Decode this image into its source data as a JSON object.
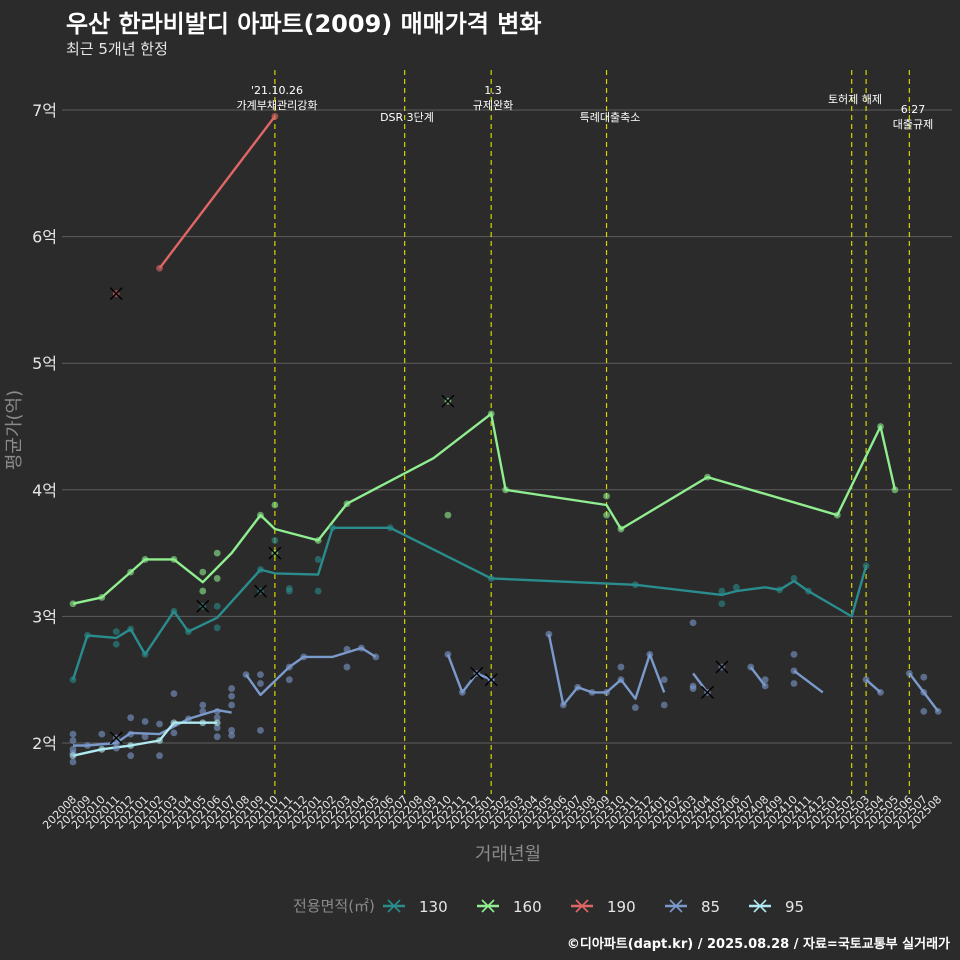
{
  "title": "우산 한라비발디 아파트(2009) 매매가격 변화",
  "subtitle": "최근 5개년 한정",
  "caption": "©디아파트(dapt.kr) / 2025.08.28 / 자료=국토교통부 실거래가",
  "chart_data": {
    "type": "line",
    "xlabel": "거래년월",
    "ylabel": "평균가(억)",
    "ylim": [
      1.6,
      7.5
    ],
    "yticks": [
      2,
      3,
      4,
      5,
      6,
      7
    ],
    "ytick_suffix": "억",
    "grid": "horizontal",
    "legend_title": "전용면적(㎡)",
    "legend_position": "bottom",
    "colors": {
      "background": "#2b2b2b",
      "grid": "#5e5e5e",
      "event_line": "#d4d400",
      "text": "#e6e6e6",
      "axis_title": "#8a8a8a"
    },
    "months": [
      "202008",
      "202009",
      "202010",
      "202011",
      "202012",
      "202101",
      "202102",
      "202103",
      "202104",
      "202105",
      "202106",
      "202107",
      "202108",
      "202109",
      "202110",
      "202111",
      "202112",
      "202201",
      "202202",
      "202203",
      "202204",
      "202205",
      "202206",
      "202207",
      "202208",
      "202209",
      "202210",
      "202211",
      "202212",
      "202301",
      "202302",
      "202303",
      "202304",
      "202305",
      "202306",
      "202307",
      "202308",
      "202309",
      "202310",
      "202311",
      "202312",
      "202401",
      "202402",
      "202403",
      "202404",
      "202405",
      "202406",
      "202407",
      "202408",
      "202409",
      "202410",
      "202411",
      "202412",
      "202501",
      "202502",
      "202503",
      "202504",
      "202505",
      "202506",
      "202507",
      "202508"
    ],
    "x_start": "202008",
    "events": [
      {
        "month": "202110",
        "label": "'21.10.26\n가계부채관리강화"
      },
      {
        "month": "202207",
        "label": "DSR 3단계"
      },
      {
        "month": "202301",
        "label": "1.3\n규제완화"
      },
      {
        "month": "202309",
        "label": "특례대출축소"
      },
      {
        "month": "202502",
        "label": "토허제 해제"
      },
      {
        "month": "202503",
        "label": ""
      },
      {
        "month": "202506",
        "label": "6.27\n대출규제"
      }
    ],
    "series": [
      {
        "name": "130",
        "color": "#2a8c8c",
        "line": [
          [
            "202008",
            2.5
          ],
          [
            "202009",
            2.85
          ],
          [
            "202011",
            2.83
          ],
          [
            "202012",
            2.9
          ],
          [
            "202101",
            2.7
          ],
          [
            "202103",
            3.04
          ],
          [
            "202104",
            2.88
          ],
          [
            "202106",
            2.99
          ],
          [
            "202109",
            3.37
          ],
          [
            "202110",
            3.34
          ],
          [
            "202201",
            3.33
          ],
          [
            "202202",
            3.7
          ],
          [
            "202206",
            3.7
          ],
          [
            "202301",
            3.3
          ],
          [
            "202311",
            3.25
          ],
          [
            "202405",
            3.17
          ],
          [
            "202406",
            3.2
          ],
          [
            "202408",
            3.23
          ],
          [
            "202409",
            3.21
          ],
          [
            "202410",
            3.28
          ],
          [
            "202411",
            3.2
          ],
          [
            "202502",
            3.0
          ],
          [
            "202503",
            3.4
          ]
        ],
        "points": [
          [
            "202008",
            2.5
          ],
          [
            "202009",
            2.85
          ],
          [
            "202011",
            2.88
          ],
          [
            "202011",
            2.78
          ],
          [
            "202012",
            2.9
          ],
          [
            "202101",
            2.7
          ],
          [
            "202103",
            3.04
          ],
          [
            "202104",
            2.88
          ],
          [
            "202106",
            3.08
          ],
          [
            "202106",
            2.91
          ],
          [
            "202109",
            3.37
          ],
          [
            "202110",
            3.6
          ],
          [
            "202111",
            3.2
          ],
          [
            "202111",
            3.22
          ],
          [
            "202201",
            3.2
          ],
          [
            "202201",
            3.45
          ],
          [
            "202202",
            3.7
          ],
          [
            "202206",
            3.7
          ],
          [
            "202301",
            3.3
          ],
          [
            "202311",
            3.25
          ],
          [
            "202405",
            3.1
          ],
          [
            "202405",
            3.2
          ],
          [
            "202406",
            3.23
          ],
          [
            "202409",
            3.21
          ],
          [
            "202410",
            3.3
          ],
          [
            "202411",
            3.2
          ],
          [
            "202503",
            3.4
          ]
        ],
        "cross": [
          [
            "202105",
            3.08
          ],
          [
            "202109",
            3.2
          ]
        ]
      },
      {
        "name": "160",
        "color": "#90ee90",
        "line": [
          [
            "202008",
            3.1
          ],
          [
            "202010",
            3.15
          ],
          [
            "202012",
            3.35
          ],
          [
            "202101",
            3.45
          ],
          [
            "202103",
            3.45
          ],
          [
            "202105",
            3.27
          ],
          [
            "202107",
            3.5
          ],
          [
            "202109",
            3.8
          ],
          [
            "202110",
            3.69
          ],
          [
            "202201",
            3.6
          ],
          [
            "202203",
            3.89
          ],
          [
            "202209",
            4.25
          ],
          [
            "202301",
            4.6
          ],
          [
            "202302",
            4.0
          ],
          [
            "202309",
            3.88
          ],
          [
            "202310",
            3.69
          ],
          [
            "202404",
            4.1
          ],
          [
            "202501",
            3.8
          ],
          [
            "202504",
            4.5
          ],
          [
            "202505",
            4.0
          ]
        ],
        "points": [
          [
            "202008",
            3.1
          ],
          [
            "202010",
            3.15
          ],
          [
            "202012",
            3.35
          ],
          [
            "202101",
            3.45
          ],
          [
            "202103",
            3.45
          ],
          [
            "202105",
            3.35
          ],
          [
            "202105",
            3.2
          ],
          [
            "202106",
            3.5
          ],
          [
            "202106",
            3.3
          ],
          [
            "202109",
            3.8
          ],
          [
            "202110",
            3.88
          ],
          [
            "202201",
            3.6
          ],
          [
            "202203",
            3.89
          ],
          [
            "202210",
            3.8
          ],
          [
            "202301",
            4.6
          ],
          [
            "202302",
            4.0
          ],
          [
            "202309",
            3.95
          ],
          [
            "202309",
            3.8
          ],
          [
            "202310",
            3.69
          ],
          [
            "202404",
            4.1
          ],
          [
            "202501",
            3.8
          ],
          [
            "202504",
            4.5
          ],
          [
            "202505",
            4.0
          ]
        ],
        "cross": [
          [
            "202110",
            3.5
          ],
          [
            "202210",
            4.7
          ]
        ]
      },
      {
        "name": "190",
        "color": "#e06666",
        "line": [
          [
            "202102",
            5.75
          ],
          [
            "202110",
            6.95
          ]
        ],
        "points": [
          [
            "202102",
            5.75
          ],
          [
            "202110",
            6.95
          ]
        ],
        "cross": [
          [
            "202011",
            5.55
          ]
        ]
      },
      {
        "name": "85",
        "color": "#7b9acc",
        "segments": [
          [
            [
              "202008",
              1.98
            ],
            [
              "202009",
              1.98
            ],
            [
              "202011",
              2.0
            ],
            [
              "202012",
              2.08
            ],
            [
              "202102",
              2.07
            ],
            [
              "202104",
              2.19
            ],
            [
              "202106",
              2.26
            ],
            [
              "202107",
              2.24
            ]
          ],
          [
            [
              "202108",
              2.54
            ],
            [
              "202109",
              2.38
            ],
            [
              "202111",
              2.6
            ],
            [
              "202112",
              2.68
            ],
            [
              "202202",
              2.68
            ],
            [
              "202204",
              2.75
            ],
            [
              "202205",
              2.68
            ]
          ],
          [
            [
              "202210",
              2.7
            ],
            [
              "202211",
              2.4
            ],
            [
              "202212",
              2.55
            ],
            [
              "202301",
              2.5
            ]
          ],
          [
            [
              "202305",
              2.86
            ],
            [
              "202306",
              2.3
            ],
            [
              "202307",
              2.44
            ],
            [
              "202308",
              2.4
            ],
            [
              "202309",
              2.4
            ],
            [
              "202310",
              2.5
            ],
            [
              "202311",
              2.35
            ],
            [
              "202312",
              2.7
            ],
            [
              "202401",
              2.4
            ]
          ],
          [
            [
              "202403",
              2.55
            ],
            [
              "202404",
              2.4
            ]
          ],
          [
            [
              "202407",
              2.6
            ],
            [
              "202408",
              2.45
            ]
          ],
          [
            [
              "202410",
              2.57
            ],
            [
              "202412",
              2.4
            ]
          ],
          [
            [
              "202503",
              2.5
            ],
            [
              "202504",
              2.4
            ]
          ],
          [
            [
              "202506",
              2.55
            ],
            [
              "202507",
              2.4
            ],
            [
              "202508",
              2.25
            ]
          ]
        ],
        "points": [
          [
            "202008",
            2.07
          ],
          [
            "202008",
            2.02
          ],
          [
            "202008",
            1.95
          ],
          [
            "202008",
            1.92
          ],
          [
            "202008",
            1.85
          ],
          [
            "202009",
            1.98
          ],
          [
            "202010",
            2.07
          ],
          [
            "202011",
            2.0
          ],
          [
            "202011",
            1.96
          ],
          [
            "202012",
            2.2
          ],
          [
            "202012",
            2.07
          ],
          [
            "202012",
            1.9
          ],
          [
            "202101",
            2.17
          ],
          [
            "202101",
            2.05
          ],
          [
            "202102",
            2.15
          ],
          [
            "202102",
            1.9
          ],
          [
            "202103",
            2.39
          ],
          [
            "202103",
            2.08
          ],
          [
            "202104",
            2.19
          ],
          [
            "202105",
            2.3
          ],
          [
            "202105",
            2.25
          ],
          [
            "202106",
            2.25
          ],
          [
            "202106",
            2.2
          ],
          [
            "202106",
            2.12
          ],
          [
            "202106",
            2.05
          ],
          [
            "202107",
            2.43
          ],
          [
            "202107",
            2.37
          ],
          [
            "202107",
            2.3
          ],
          [
            "202107",
            2.1
          ],
          [
            "202107",
            2.06
          ],
          [
            "202108",
            2.54
          ],
          [
            "202109",
            2.54
          ],
          [
            "202109",
            2.47
          ],
          [
            "202109",
            2.1
          ],
          [
            "202111",
            2.6
          ],
          [
            "202111",
            2.5
          ],
          [
            "202112",
            2.68
          ],
          [
            "202203",
            2.74
          ],
          [
            "202203",
            2.6
          ],
          [
            "202204",
            2.75
          ],
          [
            "202205",
            2.68
          ],
          [
            "202210",
            2.7
          ],
          [
            "202211",
            2.4
          ],
          [
            "202301",
            2.5
          ],
          [
            "202305",
            2.86
          ],
          [
            "202306",
            2.3
          ],
          [
            "202307",
            2.44
          ],
          [
            "202308",
            2.4
          ],
          [
            "202309",
            2.4
          ],
          [
            "202310",
            2.6
          ],
          [
            "202310",
            2.5
          ],
          [
            "202311",
            2.28
          ],
          [
            "202312",
            2.7
          ],
          [
            "202401",
            2.3
          ],
          [
            "202401",
            2.5
          ],
          [
            "202403",
            2.95
          ],
          [
            "202403",
            2.45
          ],
          [
            "202403",
            2.43
          ],
          [
            "202407",
            2.6
          ],
          [
            "202408",
            2.5
          ],
          [
            "202408",
            2.45
          ],
          [
            "202410",
            2.7
          ],
          [
            "202410",
            2.57
          ],
          [
            "202410",
            2.47
          ],
          [
            "202503",
            2.5
          ],
          [
            "202504",
            2.4
          ],
          [
            "202506",
            2.55
          ],
          [
            "202507",
            2.52
          ],
          [
            "202507",
            2.4
          ],
          [
            "202507",
            2.25
          ],
          [
            "202508",
            2.25
          ]
        ],
        "cross": [
          [
            "202011",
            2.04
          ],
          [
            "202212",
            2.55
          ],
          [
            "202301",
            2.5
          ],
          [
            "202404",
            2.4
          ],
          [
            "202405",
            2.6
          ]
        ]
      },
      {
        "name": "95",
        "color": "#b0eaf0",
        "line": [
          [
            "202008",
            1.9
          ],
          [
            "202010",
            1.95
          ],
          [
            "202012",
            1.98
          ],
          [
            "202102",
            2.02
          ],
          [
            "202103",
            2.16
          ],
          [
            "202105",
            2.16
          ],
          [
            "202106",
            2.16
          ]
        ],
        "points": [
          [
            "202008",
            1.9
          ],
          [
            "202010",
            1.95
          ],
          [
            "202012",
            1.98
          ],
          [
            "202102",
            2.02
          ],
          [
            "202103",
            2.16
          ],
          [
            "202105",
            2.16
          ],
          [
            "202106",
            2.16
          ]
        ],
        "cross": []
      }
    ]
  }
}
